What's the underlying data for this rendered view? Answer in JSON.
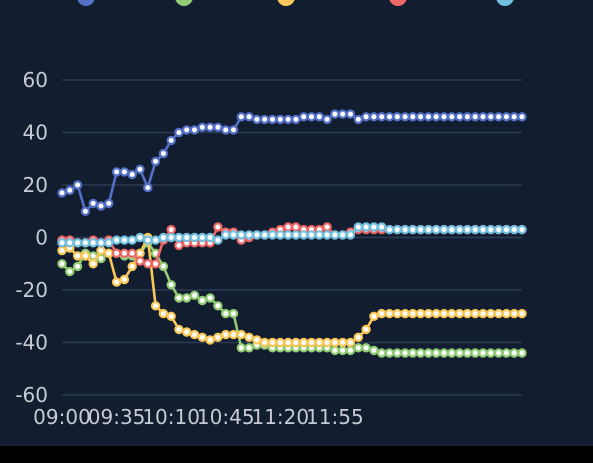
{
  "chart_data": {
    "type": "line",
    "title": "",
    "xlabel": "",
    "ylabel": "",
    "grid": true,
    "legend_position": "top",
    "ylim": [
      -60,
      60
    ],
    "yticks": [
      "60",
      "40",
      "20",
      "0",
      "-20",
      "-40",
      "-60"
    ],
    "xticks": [
      "09:00",
      "09:35",
      "10:10",
      "10:45",
      "11:20",
      "11:55"
    ],
    "x": [
      "09:00",
      "09:05",
      "09:10",
      "09:15",
      "09:20",
      "09:25",
      "09:30",
      "09:35",
      "09:40",
      "09:45",
      "09:50",
      "09:55",
      "10:00",
      "10:05",
      "10:10",
      "10:15",
      "10:20",
      "10:25",
      "10:30",
      "10:35",
      "10:40",
      "10:45",
      "10:50",
      "10:55",
      "11:00",
      "11:05",
      "11:10",
      "11:15",
      "11:20",
      "11:25",
      "11:30",
      "11:35",
      "11:40",
      "11:45",
      "11:50",
      "11:55",
      "12:00",
      "12:05",
      "12:10",
      "12:15",
      "12:20",
      "12:25",
      "12:30",
      "12:35",
      "12:40",
      "12:45",
      "12:50",
      "12:55",
      "13:00",
      "13:05",
      "13:10",
      "13:15",
      "13:20",
      "13:25",
      "13:30",
      "13:35",
      "13:40",
      "13:45",
      "13:50",
      "13:55"
    ],
    "series": [
      {
        "name": "",
        "color": "#5470c6",
        "values": [
          17,
          18,
          20,
          10,
          13,
          12,
          13,
          25,
          25,
          24,
          26,
          19,
          29,
          32,
          37,
          40,
          41,
          41,
          42,
          42,
          42,
          41,
          41,
          46,
          46,
          45,
          45,
          45,
          45,
          45,
          45,
          46,
          46,
          46,
          45,
          47,
          47,
          47,
          45,
          46,
          46,
          46,
          46,
          46,
          46,
          46,
          46,
          46,
          46,
          46,
          46,
          46,
          46,
          46,
          46,
          46,
          46,
          46,
          46,
          46
        ]
      },
      {
        "name": "",
        "color": "#91cc75",
        "values": [
          -10,
          -13,
          -11,
          -6,
          -7,
          -8,
          -6,
          -6,
          -7,
          -7,
          -6,
          -2,
          -6,
          -11,
          -18,
          -23,
          -23,
          -22,
          -24,
          -23,
          -26,
          -29,
          -29,
          -42,
          -42,
          -41,
          -41,
          -42,
          -42,
          -42,
          -42,
          -42,
          -42,
          -42,
          -42,
          -43,
          -43,
          -43,
          -42,
          -42,
          -43,
          -44,
          -44,
          -44,
          -44,
          -44,
          -44,
          -44,
          -44,
          -44,
          -44,
          -44,
          -44,
          -44,
          -44,
          -44,
          -44,
          -44,
          -44,
          -44
        ]
      },
      {
        "name": "",
        "color": "#fac858",
        "values": [
          -5,
          -4,
          -7,
          -7,
          -10,
          -5,
          -6,
          -17,
          -16,
          -11,
          -6,
          0,
          -26,
          -29,
          -30,
          -35,
          -36,
          -37,
          -38,
          -39,
          -38,
          -37,
          -37,
          -37,
          -38,
          -39,
          -40,
          -40,
          -40,
          -40,
          -40,
          -40,
          -40,
          -40,
          -40,
          -40,
          -40,
          -40,
          -38,
          -35,
          -30,
          -29,
          -29,
          -29,
          -29,
          -29,
          -29,
          -29,
          -29,
          -29,
          -29,
          -29,
          -29,
          -29,
          -29,
          -29,
          -29,
          -29,
          -29,
          -29
        ]
      },
      {
        "name": "",
        "color": "#ee6666",
        "values": [
          -1,
          -1,
          -2,
          -2,
          -1,
          -2,
          -1,
          -6,
          -6,
          -6,
          -9,
          -10,
          -10,
          -1,
          3,
          -3,
          -2,
          -2,
          -2,
          -2,
          4,
          2,
          2,
          -1,
          0,
          1,
          1,
          2,
          3,
          4,
          4,
          3,
          3,
          3,
          4,
          1,
          1,
          2,
          3,
          3,
          3,
          3,
          3,
          3,
          3,
          3,
          3,
          3,
          3,
          3,
          3,
          3,
          3,
          3,
          3,
          3,
          3,
          3,
          3,
          3
        ]
      },
      {
        "name": "",
        "color": "#73c0de",
        "values": [
          -2,
          -2,
          -2,
          -2,
          -2,
          -2,
          -2,
          -1,
          -1,
          -1,
          0,
          -1,
          -1,
          0,
          0,
          0,
          0,
          0,
          0,
          0,
          -1,
          1,
          1,
          1,
          1,
          1,
          1,
          1,
          1,
          1,
          1,
          1,
          1,
          1,
          1,
          1,
          1,
          1,
          4,
          4,
          4,
          4,
          3,
          3,
          3,
          3,
          3,
          3,
          3,
          3,
          3,
          3,
          3,
          3,
          3,
          3,
          3,
          3,
          3,
          3
        ]
      }
    ]
  }
}
